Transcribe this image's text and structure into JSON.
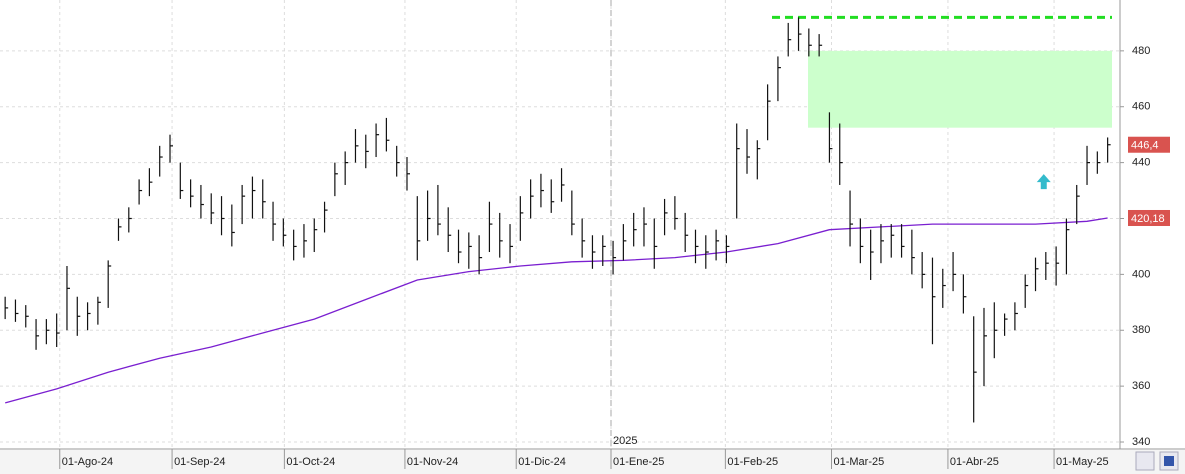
{
  "chart_data": {
    "type": "ohlc",
    "xlim": [
      -0.5,
      108.2
    ],
    "ylim": [
      337.5,
      498.2
    ],
    "yticks": [
      340,
      360,
      380,
      400,
      420,
      440,
      460,
      480
    ],
    "xticks": [
      {
        "value": 5.3,
        "label": "01-Ago-24"
      },
      {
        "value": 16.2,
        "label": "01-Sep-24"
      },
      {
        "value": 27.1,
        "label": "01-Oct-24"
      },
      {
        "value": 38.8,
        "label": "01-Nov-24"
      },
      {
        "value": 49.6,
        "label": "01-Dic-24"
      },
      {
        "value": 58.8,
        "label": "01-Ene-25"
      },
      {
        "value": 69.9,
        "label": "01-Feb-25"
      },
      {
        "value": 80.2,
        "label": "01-Mar-25"
      },
      {
        "value": 91.5,
        "label": "01-Abr-25"
      },
      {
        "value": 101.8,
        "label": "01-May-25"
      }
    ],
    "year_marker": {
      "value": 58.8,
      "label": "2025"
    },
    "grid": true,
    "bars": {
      "color": "#111111",
      "high": [
        392,
        391,
        389,
        384,
        384,
        386,
        403,
        392,
        390,
        392,
        405,
        420,
        424,
        434,
        438,
        446,
        450,
        440,
        434,
        432,
        429,
        428,
        425,
        432,
        435,
        434,
        426,
        420,
        416,
        418,
        420,
        426,
        440,
        444,
        452,
        450,
        454,
        456,
        446,
        442,
        428,
        430,
        432,
        424,
        416,
        415,
        414,
        426,
        422,
        418,
        428,
        434,
        436,
        434,
        438,
        430,
        420,
        414,
        414,
        412,
        418,
        422,
        424,
        420,
        427,
        428,
        422,
        416,
        414,
        416,
        414,
        454,
        452,
        448,
        468,
        478,
        490,
        492,
        488,
        486,
        458,
        454,
        430,
        420,
        416,
        418,
        418,
        418,
        416,
        408,
        406,
        402,
        408,
        400,
        385,
        388,
        390,
        386,
        390,
        400,
        406,
        408,
        410,
        420,
        432,
        446,
        444,
        449
      ],
      "low": [
        384,
        383,
        381,
        373,
        375,
        374,
        380,
        378,
        380,
        382,
        388,
        412,
        415,
        425,
        428,
        435,
        440,
        427,
        424,
        420,
        418,
        414,
        410,
        418,
        420,
        420,
        412,
        410,
        405,
        406,
        408,
        415,
        428,
        432,
        440,
        438,
        442,
        444,
        435,
        430,
        405,
        412,
        414,
        408,
        404,
        402,
        400,
        408,
        406,
        404,
        412,
        420,
        424,
        422,
        426,
        414,
        406,
        402,
        403,
        400,
        405,
        410,
        410,
        402,
        414,
        416,
        408,
        404,
        402,
        405,
        404,
        420,
        436,
        434,
        448,
        462,
        478,
        480,
        478,
        478,
        440,
        432,
        410,
        404,
        398,
        404,
        406,
        406,
        400,
        395,
        375,
        388,
        394,
        386,
        347,
        360,
        370,
        378,
        380,
        388,
        394,
        398,
        396,
        400,
        418,
        432,
        436,
        440
      ],
      "close": [
        388,
        386,
        385,
        378,
        380,
        379,
        395,
        385,
        386,
        390,
        403,
        417,
        420,
        430,
        433,
        442,
        446,
        430,
        428,
        425,
        422,
        420,
        415,
        428,
        430,
        426,
        418,
        414,
        410,
        412,
        416,
        423,
        436,
        440,
        446,
        444,
        450,
        448,
        440,
        436,
        412,
        420,
        418,
        414,
        408,
        410,
        406,
        418,
        412,
        410,
        422,
        428,
        430,
        426,
        432,
        418,
        412,
        408,
        410,
        406,
        412,
        416,
        418,
        410,
        422,
        420,
        414,
        410,
        408,
        412,
        410,
        445,
        442,
        445,
        462,
        474,
        484,
        486,
        482,
        482,
        445,
        440,
        418,
        410,
        408,
        412,
        414,
        410,
        406,
        400,
        392,
        396,
        400,
        392,
        365,
        378,
        380,
        384,
        386,
        396,
        402,
        404,
        404,
        416,
        428,
        440,
        440,
        446.4
      ],
      "value_label": "446,4",
      "label_color": "#d9534f"
    },
    "ma": {
      "color": "#7a1fd0",
      "x": [
        0,
        5,
        10,
        15,
        20,
        25,
        30,
        35,
        40,
        45,
        50,
        55,
        60,
        65,
        70,
        75,
        80,
        85,
        90,
        95,
        100,
        105,
        107
      ],
      "values": [
        354,
        359,
        365,
        370,
        374,
        379,
        384,
        391,
        398,
        401,
        403,
        404.5,
        405,
        406,
        408,
        411,
        416,
        417,
        418,
        418,
        418,
        419,
        420.18
      ],
      "value_label": "420,18",
      "label_color": "#d9534f"
    },
    "resistance": {
      "value": 492,
      "color": "#22dd22"
    },
    "zone": {
      "low": 452.5,
      "high": 480,
      "color": "#ccffcc"
    },
    "arrow": {
      "x": 100.8,
      "value": 433,
      "color": "#33bbcc"
    }
  }
}
